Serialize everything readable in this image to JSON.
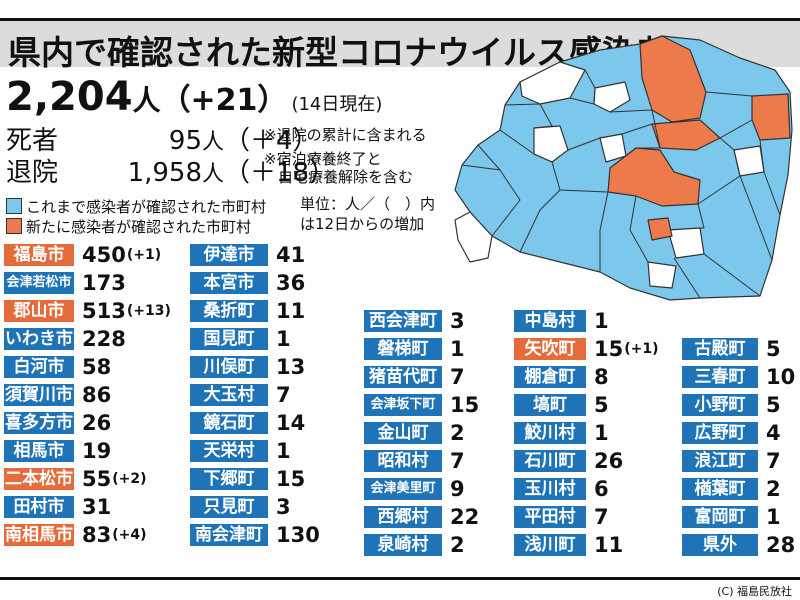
{
  "title": "県内で確認された新型コロナウイルス感染者",
  "total": {
    "count": "2,204",
    "unit": "人",
    "delta": "（+21）",
    "as_of": "(14日現在)"
  },
  "deaths": {
    "label": "死者",
    "value": "95",
    "unit": "人",
    "delta": "（＋4）"
  },
  "recovered": {
    "label": "退院",
    "value": "1,958",
    "unit": "人",
    "delta": "（＋18）"
  },
  "notes": [
    "※退院の累計に含まれる",
    "※宿泊療養終了と",
    "自宅療養解除を含む"
  ],
  "legend": [
    {
      "label": "これまで感染者が確認された市町村",
      "color": "#7cc7ec"
    },
    {
      "label": "新たに感染者が確認された市町村",
      "color": "#ed7a4b"
    }
  ],
  "unit_note": [
    "単位：人／（　）内",
    "は12日からの増加"
  ],
  "colors": {
    "blue_badge": "#1f73b7",
    "orange_badge": "#e56b3a",
    "map_blue": "#7cc7ec",
    "map_orange": "#ed7a4b",
    "map_white": "#ffffff"
  },
  "columns": [
    [
      {
        "name": "福島市",
        "count": "450",
        "delta": "(+1)",
        "new": true
      },
      {
        "name": "会津若松市",
        "count": "173",
        "delta": "",
        "new": false
      },
      {
        "name": "郡山市",
        "count": "513",
        "delta": "(+13)",
        "new": true
      },
      {
        "name": "いわき市",
        "count": "228",
        "delta": "",
        "new": false
      },
      {
        "name": "白河市",
        "count": "58",
        "delta": "",
        "new": false
      },
      {
        "name": "須賀川市",
        "count": "86",
        "delta": "",
        "new": false
      },
      {
        "name": "喜多方市",
        "count": "26",
        "delta": "",
        "new": false
      },
      {
        "name": "相馬市",
        "count": "19",
        "delta": "",
        "new": false
      },
      {
        "name": "二本松市",
        "count": "55",
        "delta": "(+2)",
        "new": true
      },
      {
        "name": "田村市",
        "count": "31",
        "delta": "",
        "new": false
      },
      {
        "name": "南相馬市",
        "count": "83",
        "delta": "(+4)",
        "new": true
      }
    ],
    [
      {
        "name": "伊達市",
        "count": "41",
        "delta": "",
        "new": false
      },
      {
        "name": "本宮市",
        "count": "36",
        "delta": "",
        "new": false
      },
      {
        "name": "桑折町",
        "count": "11",
        "delta": "",
        "new": false
      },
      {
        "name": "国見町",
        "count": "1",
        "delta": "",
        "new": false
      },
      {
        "name": "川俣町",
        "count": "13",
        "delta": "",
        "new": false
      },
      {
        "name": "大玉村",
        "count": "7",
        "delta": "",
        "new": false
      },
      {
        "name": "鏡石町",
        "count": "14",
        "delta": "",
        "new": false
      },
      {
        "name": "天栄村",
        "count": "1",
        "delta": "",
        "new": false
      },
      {
        "name": "下郷町",
        "count": "15",
        "delta": "",
        "new": false
      },
      {
        "name": "只見町",
        "count": "3",
        "delta": "",
        "new": false
      },
      {
        "name": "南会津町",
        "count": "130",
        "delta": "",
        "new": false
      }
    ],
    [
      {
        "name": "西会津町",
        "count": "3",
        "delta": "",
        "new": false
      },
      {
        "name": "磐梯町",
        "count": "1",
        "delta": "",
        "new": false
      },
      {
        "name": "猪苗代町",
        "count": "7",
        "delta": "",
        "new": false
      },
      {
        "name": "会津坂下町",
        "count": "15",
        "delta": "",
        "new": false
      },
      {
        "name": "金山町",
        "count": "2",
        "delta": "",
        "new": false
      },
      {
        "name": "昭和村",
        "count": "7",
        "delta": "",
        "new": false
      },
      {
        "name": "会津美里町",
        "count": "9",
        "delta": "",
        "new": false
      },
      {
        "name": "西郷村",
        "count": "22",
        "delta": "",
        "new": false
      },
      {
        "name": "泉崎村",
        "count": "2",
        "delta": "",
        "new": false
      }
    ],
    [
      {
        "name": "中島村",
        "count": "1",
        "delta": "",
        "new": false
      },
      {
        "name": "矢吹町",
        "count": "15",
        "delta": "(+1)",
        "new": true
      },
      {
        "name": "棚倉町",
        "count": "8",
        "delta": "",
        "new": false
      },
      {
        "name": "塙町",
        "count": "5",
        "delta": "",
        "new": false
      },
      {
        "name": "鮫川村",
        "count": "1",
        "delta": "",
        "new": false
      },
      {
        "name": "石川町",
        "count": "26",
        "delta": "",
        "new": false
      },
      {
        "name": "玉川村",
        "count": "6",
        "delta": "",
        "new": false
      },
      {
        "name": "平田村",
        "count": "7",
        "delta": "",
        "new": false
      },
      {
        "name": "浅川町",
        "count": "11",
        "delta": "",
        "new": false
      }
    ],
    [
      {
        "name": "古殿町",
        "count": "5",
        "delta": "",
        "new": false
      },
      {
        "name": "三春町",
        "count": "10",
        "delta": "",
        "new": false
      },
      {
        "name": "小野町",
        "count": "5",
        "delta": "",
        "new": false
      },
      {
        "name": "広野町",
        "count": "4",
        "delta": "",
        "new": false
      },
      {
        "name": "浪江町",
        "count": "7",
        "delta": "",
        "new": false
      },
      {
        "name": "楢葉町",
        "count": "2",
        "delta": "",
        "new": false
      },
      {
        "name": "富岡町",
        "count": "1",
        "delta": "",
        "new": false
      },
      {
        "name": "県外",
        "count": "28",
        "delta": "",
        "new": false
      }
    ]
  ],
  "credit": "(C) 福島民放社"
}
